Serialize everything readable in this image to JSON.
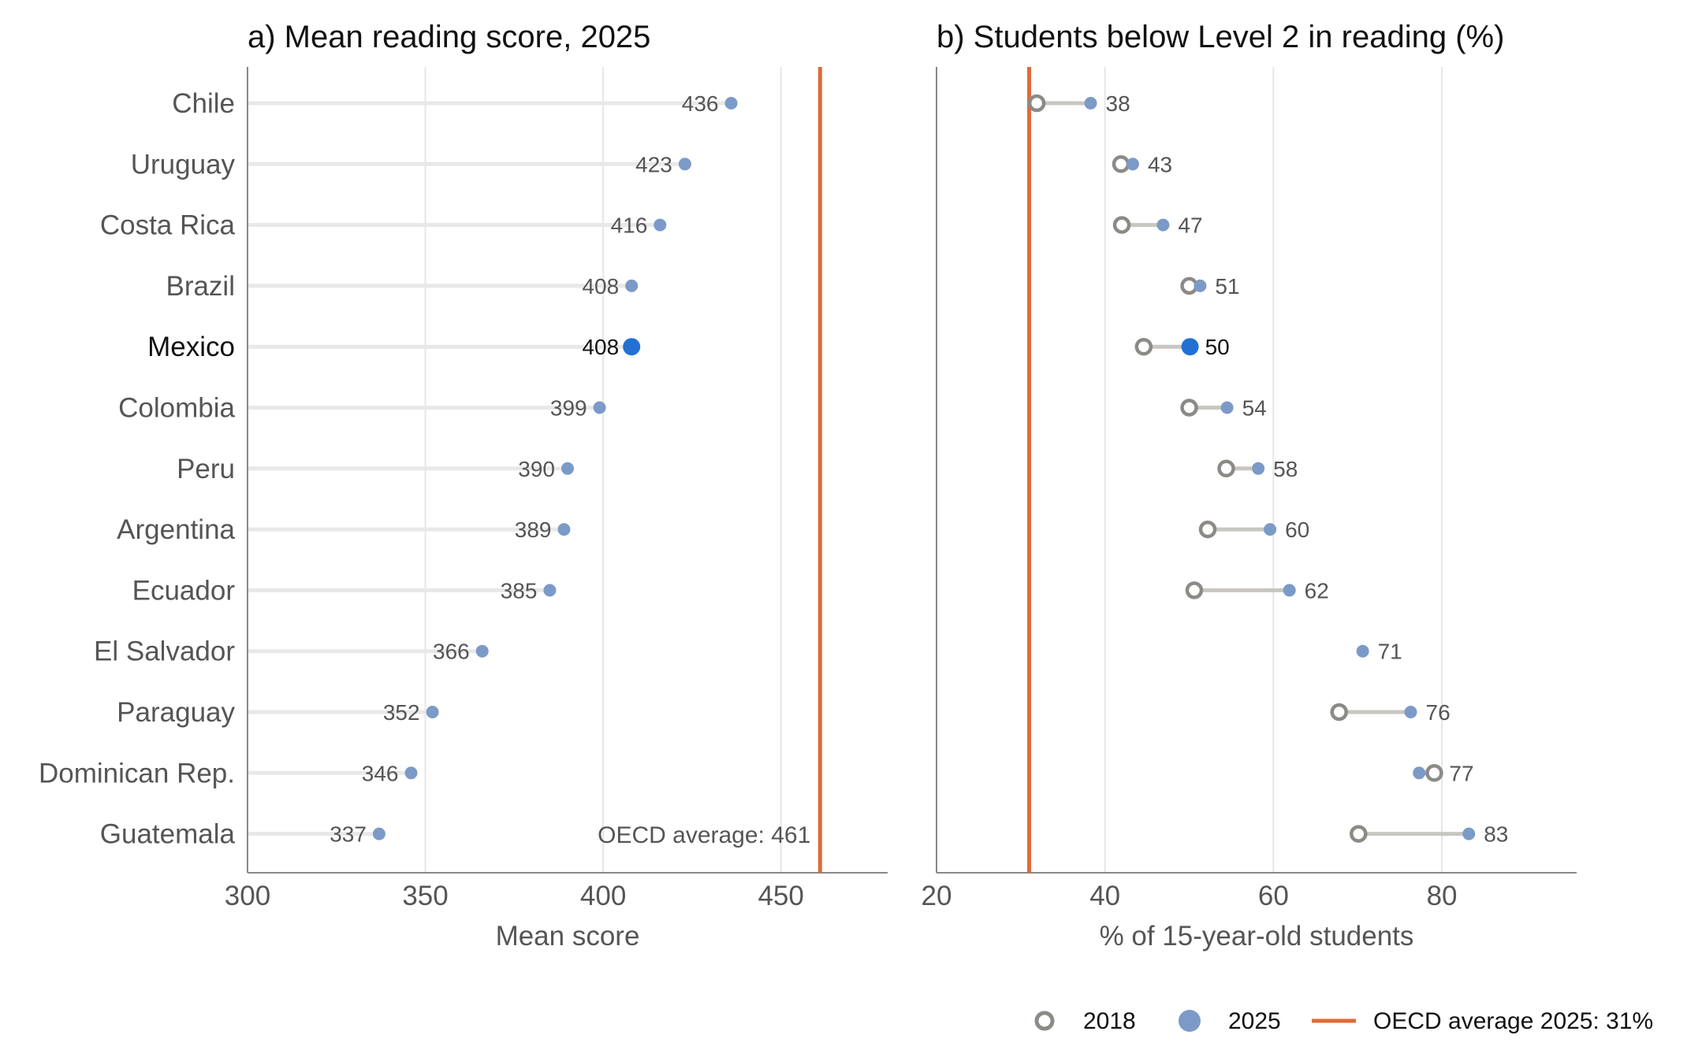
{
  "chart_data": [
    {
      "type": "lollipop",
      "title": "a) Mean reading score, 2025",
      "xlabel": "Mean score",
      "xlim": [
        300,
        480
      ],
      "xticks": [
        300,
        350,
        400,
        450
      ],
      "grid": "vertical",
      "highlight": "Mexico",
      "categories": [
        "Chile",
        "Uruguay",
        "Costa Rica",
        "Brazil",
        "Mexico",
        "Colombia",
        "Peru",
        "Argentina",
        "Ecuador",
        "El Salvador",
        "Paraguay",
        "Dominican Rep.",
        "Guatemala"
      ],
      "values": [
        436,
        423,
        416,
        408,
        408,
        399,
        390,
        389,
        385,
        366,
        352,
        346,
        337
      ],
      "reference": {
        "value": 461,
        "label": "OECD average: 461"
      }
    },
    {
      "type": "dumbbell",
      "title": "b) Students below Level 2 in reading (%)",
      "xlabel": "% of 15-year-old students",
      "xlim": [
        20,
        96
      ],
      "xticks": [
        20,
        40,
        60,
        80
      ],
      "grid": "vertical",
      "highlight": "Mexico",
      "categories": [
        "Chile",
        "Uruguay",
        "Costa Rica",
        "Brazil",
        "Mexico",
        "Colombia",
        "Peru",
        "Argentina",
        "Ecuador",
        "El Salvador",
        "Paraguay",
        "Dominican Rep.",
        "Guatemala"
      ],
      "series": [
        {
          "name": "2018",
          "values": [
            31.9,
            41.9,
            42,
            50,
            44.6,
            50,
            54.4,
            52.2,
            50.6,
            null,
            67.8,
            79.1,
            70.1
          ]
        },
        {
          "name": "2025",
          "values": [
            38.3,
            43.3,
            46.9,
            51.3,
            50.1,
            54.5,
            58.2,
            59.6,
            61.9,
            70.6,
            76.3,
            77.3,
            83.2
          ]
        }
      ],
      "value_labels": [
        "38",
        "43",
        "47",
        "51",
        "50",
        "54",
        "58",
        "60",
        "62",
        "71",
        "76",
        "77",
        "83"
      ],
      "reference": {
        "value": 31,
        "label": "OECD average 2025: 31%"
      }
    }
  ],
  "legend": {
    "placement": "bottom-right",
    "items": [
      {
        "label": "2018",
        "marker": "open-circle"
      },
      {
        "label": "2025",
        "marker": "filled-circle"
      },
      {
        "label": "OECD average 2025: 31%",
        "marker": "line"
      }
    ]
  },
  "colors": {
    "point": "#7b9ac8",
    "highlight": "#2271d2",
    "open_2018": "#8c8a86",
    "reference": "#e06a3a",
    "stem_a": "#e8e8e8",
    "stem_b": "#c8c6c1",
    "grid": "#e6e6e6",
    "axis": "#888888"
  }
}
